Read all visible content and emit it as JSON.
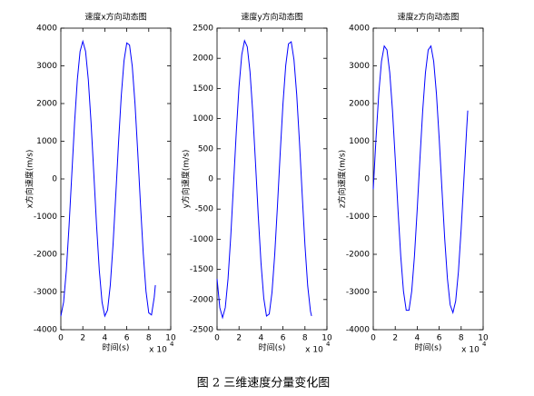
{
  "chart_data": [
    {
      "type": "line",
      "title": "速度x方向动态图",
      "xlabel": "时间(s)",
      "ylabel": "x方向速度(m/s)",
      "x_scale_label": "x 10",
      "x_scale_exponent": "4",
      "color": "#0000ff",
      "xlim": [
        0,
        10
      ],
      "xticks": [
        0,
        2,
        4,
        6,
        8,
        10
      ],
      "ylim": [
        -4000,
        4000
      ],
      "yticks": [
        -4000,
        -3000,
        -2000,
        -1000,
        0,
        1000,
        2000,
        3000,
        4000
      ],
      "x": [
        0,
        0.25,
        0.5,
        0.75,
        1,
        1.25,
        1.5,
        1.75,
        2,
        2.25,
        2.5,
        2.75,
        3,
        3.25,
        3.5,
        3.75,
        4,
        4.25,
        4.5,
        4.75,
        5,
        5.25,
        5.5,
        5.75,
        6,
        6.25,
        6.5,
        6.75,
        7,
        7.25,
        7.5,
        7.75,
        8,
        8.25,
        8.5,
        8.6
      ],
      "values": [
        -3639,
        -3270,
        -2429,
        -1234,
        139,
        1493,
        2628,
        3384,
        3650,
        3387,
        2632,
        1493,
        141,
        -1232,
        -2428,
        -3271,
        -3639,
        -3482,
        -2818,
        -1745,
        -420,
        966,
        2211,
        3136,
        3607,
        3554,
        2987,
        1990,
        697,
        -693,
        -1982,
        -2984,
        -3553,
        -3608,
        -3138,
        -2817
      ]
    },
    {
      "type": "line",
      "title": "速度y方向动态图",
      "xlabel": "时间(s)",
      "ylabel": "y方向速度(m/s)",
      "x_scale_label": "x 10",
      "x_scale_exponent": "4",
      "color": "#0000ff",
      "xlim": [
        0,
        10
      ],
      "xticks": [
        0,
        2,
        4,
        6,
        8,
        10
      ],
      "ylim": [
        -2500,
        2500
      ],
      "yticks": [
        -2500,
        -2000,
        -1500,
        -1000,
        -500,
        0,
        500,
        1000,
        1500,
        2000,
        2500
      ],
      "x": [
        0,
        0.25,
        0.5,
        0.75,
        1,
        1.25,
        1.5,
        1.75,
        2,
        2.25,
        2.5,
        2.75,
        3,
        3.25,
        3.5,
        3.75,
        4,
        4.25,
        4.5,
        4.75,
        5,
        5.25,
        5.5,
        5.75,
        6,
        6.25,
        6.5,
        6.75,
        7,
        7.25,
        7.5,
        7.75,
        8,
        8.25,
        8.5,
        8.6
      ],
      "values": [
        -1656,
        -2134,
        -2300,
        -2134,
        -1656,
        -941,
        -88,
        777,
        1530,
        2061,
        2293,
        2192,
        1776,
        1099,
        265,
        -609,
        -1394,
        -1976,
        -2273,
        -2240,
        -1881,
        -1251,
        -439,
        437,
        1249,
        1881,
        2240,
        2273,
        1978,
        1396,
        612,
        -262,
        -1097,
        -1773,
        -2192,
        -2273
      ]
    },
    {
      "type": "line",
      "title": "速度z方向动态图",
      "xlabel": "时间(s)",
      "ylabel": "z方向速度(m/s)",
      "x_scale_label": "x 10",
      "x_scale_exponent": "4",
      "color": "#0000ff",
      "xlim": [
        0,
        10
      ],
      "xticks": [
        0,
        2,
        4,
        6,
        8,
        10
      ],
      "ylim": [
        -4000,
        4000
      ],
      "yticks": [
        -4000,
        -3000,
        -2000,
        -1000,
        0,
        1000,
        2000,
        3000,
        4000
      ],
      "x": [
        0,
        0.25,
        0.5,
        0.75,
        1,
        1.25,
        1.5,
        1.75,
        2,
        2.25,
        2.5,
        2.75,
        3,
        3.25,
        3.5,
        3.75,
        4,
        4.25,
        4.5,
        4.75,
        5,
        5.25,
        5.5,
        5.75,
        6,
        6.25,
        6.5,
        6.75,
        7,
        7.25,
        7.5,
        7.75,
        8,
        8.25,
        8.5,
        8.6
      ],
      "values": [
        -272,
        1071,
        2259,
        3120,
        3527,
        3423,
        2823,
        1815,
        543,
        -808,
        -2041,
        -2979,
        -3485,
        -3485,
        -2980,
        -2043,
        -810,
        541,
        1813,
        2821,
        3423,
        3527,
        3119,
        2260,
        1073,
        -270,
        -1574,
        -2648,
        -3340,
        -3547,
        -3241,
        -2464,
        -1329,
        -2,
        1325,
        1813
      ]
    }
  ],
  "figure_caption": "图 2  三维速度分量变化图"
}
